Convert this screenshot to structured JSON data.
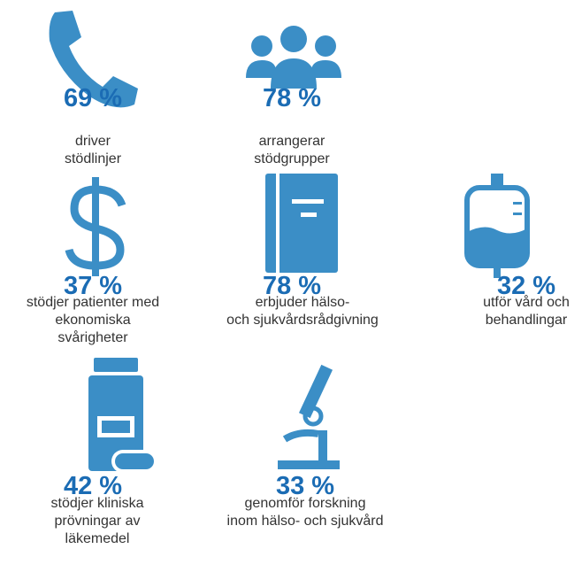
{
  "items": [
    {
      "value": "69 %",
      "label": [
        "driver",
        "stödlinjer"
      ]
    },
    {
      "value": "78 %",
      "label": [
        "arrangerar",
        "stödgrupper"
      ]
    },
    {
      "value": "37 %",
      "label": [
        "stödjer patienter med",
        "ekonomiska",
        "svårigheter"
      ]
    },
    {
      "value": "78 %",
      "label": [
        "erbjuder hälso-",
        "och sjukvårdsrådgivning"
      ]
    },
    {
      "value": "32 %",
      "label": [
        "utför vård och",
        "behandlingar"
      ]
    },
    {
      "value": "42 %",
      "label": [
        "stödjer kliniska",
        "prövningar av",
        "läkemedel"
      ]
    },
    {
      "value": "33 %",
      "label": [
        "genomför forskning",
        "inom hälso- och sjukvård"
      ]
    }
  ]
}
